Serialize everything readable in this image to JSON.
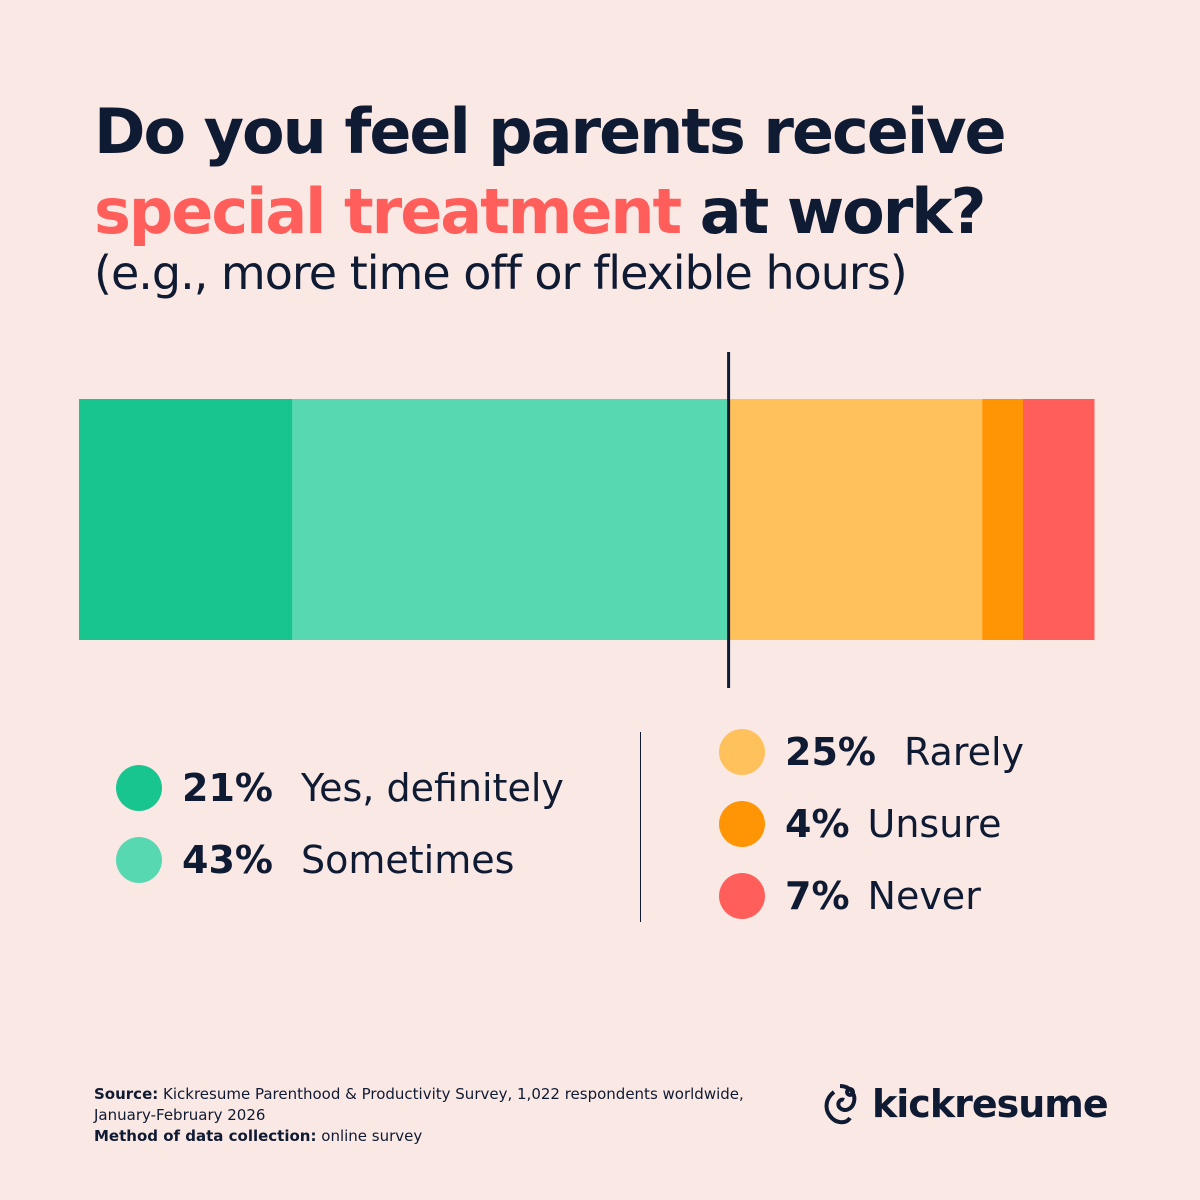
{
  "chart_data": {
    "type": "bar",
    "orientation": "horizontal-stacked-100",
    "title_part1": "Do you feel parents receive",
    "title_accent": "special treatment",
    "title_part2": "at work?",
    "subtitle": "(e.g., more time off or flexible hours)",
    "categories": [
      "Yes, definitely",
      "Sometimes",
      "Rarely",
      "Unsure",
      "Never"
    ],
    "values": [
      21,
      43,
      25,
      4,
      7
    ],
    "labels": [
      "21%",
      "43%",
      "25%",
      "4%",
      "7%"
    ],
    "colors": [
      "#19c58f",
      "#57d8b1",
      "#ffc15b",
      "#ff9505",
      "#ff5e5b"
    ],
    "xlim": [
      0,
      100
    ],
    "divider_at": 64,
    "legend": "bottom"
  },
  "colors": {
    "background": "#fae8e4",
    "text": "#0f1a33",
    "accent": "#ff5e5b"
  },
  "footer": {
    "source_label": "Source:",
    "source_text": "Kickresume Parenthood & Productivity Survey, 1,022 respondents worldwide, January-February 2026",
    "method_label": "Method of data collection:",
    "method_text": "online survey"
  },
  "logo": {
    "text": "kickresume",
    "icon": "chameleon-logo-icon"
  }
}
